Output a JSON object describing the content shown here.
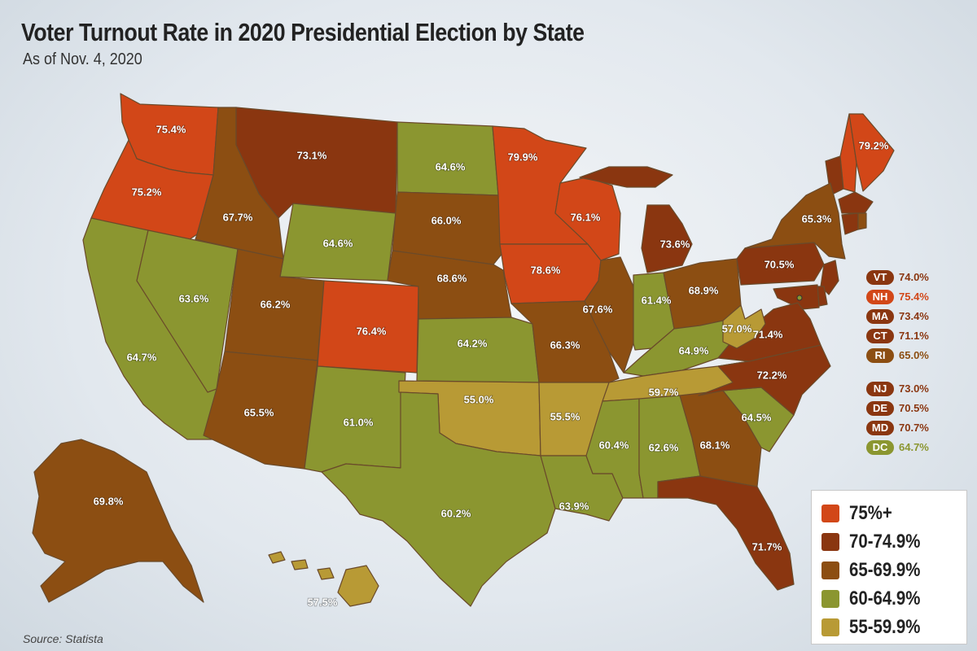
{
  "header": {
    "title": "Voter Turnout Rate in 2020 Presidential Election by State",
    "subtitle": "As of Nov. 4, 2020"
  },
  "source": "Source: Statista",
  "colors": {
    "c75": "#d24718",
    "c70": "#8a3610",
    "c65": "#8c4e12",
    "c60": "#8b9630",
    "c55": "#b89a35"
  },
  "states": [
    {
      "abbr": "WA",
      "value": "75.4%",
      "bin": "c75"
    },
    {
      "abbr": "OR",
      "value": "75.2%",
      "bin": "c75"
    },
    {
      "abbr": "CA",
      "value": "64.7%",
      "bin": "c60"
    },
    {
      "abbr": "NV",
      "value": "63.6%",
      "bin": "c60"
    },
    {
      "abbr": "ID",
      "value": "67.7%",
      "bin": "c65"
    },
    {
      "abbr": "MT",
      "value": "73.1%",
      "bin": "c70"
    },
    {
      "abbr": "WY",
      "value": "64.6%",
      "bin": "c60"
    },
    {
      "abbr": "UT",
      "value": "66.2%",
      "bin": "c65"
    },
    {
      "abbr": "AZ",
      "value": "65.5%",
      "bin": "c65"
    },
    {
      "abbr": "CO",
      "value": "76.4%",
      "bin": "c75"
    },
    {
      "abbr": "NM",
      "value": "61.0%",
      "bin": "c60"
    },
    {
      "abbr": "ND",
      "value": "64.6%",
      "bin": "c60"
    },
    {
      "abbr": "SD",
      "value": "66.0%",
      "bin": "c65"
    },
    {
      "abbr": "NE",
      "value": "68.6%",
      "bin": "c65"
    },
    {
      "abbr": "KS",
      "value": "64.2%",
      "bin": "c60"
    },
    {
      "abbr": "OK",
      "value": "55.0%",
      "bin": "c55"
    },
    {
      "abbr": "TX",
      "value": "60.2%",
      "bin": "c60"
    },
    {
      "abbr": "MN",
      "value": "79.9%",
      "bin": "c75"
    },
    {
      "abbr": "IA",
      "value": "78.6%",
      "bin": "c75"
    },
    {
      "abbr": "MO",
      "value": "66.3%",
      "bin": "c65"
    },
    {
      "abbr": "AR",
      "value": "55.5%",
      "bin": "c55"
    },
    {
      "abbr": "LA",
      "value": "63.9%",
      "bin": "c60"
    },
    {
      "abbr": "WI",
      "value": "76.1%",
      "bin": "c75"
    },
    {
      "abbr": "IL",
      "value": "67.6%",
      "bin": "c65"
    },
    {
      "abbr": "MI",
      "value": "73.6%",
      "bin": "c70"
    },
    {
      "abbr": "IN",
      "value": "61.4%",
      "bin": "c60"
    },
    {
      "abbr": "OH",
      "value": "68.9%",
      "bin": "c65"
    },
    {
      "abbr": "KY",
      "value": "64.9%",
      "bin": "c60"
    },
    {
      "abbr": "TN",
      "value": "59.7%",
      "bin": "c55"
    },
    {
      "abbr": "MS",
      "value": "60.4%",
      "bin": "c60"
    },
    {
      "abbr": "AL",
      "value": "62.6%",
      "bin": "c60"
    },
    {
      "abbr": "GA",
      "value": "68.1%",
      "bin": "c65"
    },
    {
      "abbr": "FL",
      "value": "71.7%",
      "bin": "c70"
    },
    {
      "abbr": "SC",
      "value": "64.5%",
      "bin": "c60"
    },
    {
      "abbr": "NC",
      "value": "72.2%",
      "bin": "c70"
    },
    {
      "abbr": "VA",
      "value": "71.4%",
      "bin": "c70"
    },
    {
      "abbr": "WV",
      "value": "57.0%",
      "bin": "c55"
    },
    {
      "abbr": "PA",
      "value": "70.5%",
      "bin": "c70"
    },
    {
      "abbr": "NY",
      "value": "65.3%",
      "bin": "c65"
    },
    {
      "abbr": "ME",
      "value": "79.2%",
      "bin": "c75"
    },
    {
      "abbr": "AK",
      "value": "69.8%",
      "bin": "c65"
    },
    {
      "abbr": "HI",
      "value": "57.5%",
      "bin": "c55"
    }
  ],
  "small_states": [
    {
      "abbr": "VT",
      "value": "74.0%",
      "bin": "c70"
    },
    {
      "abbr": "NH",
      "value": "75.4%",
      "bin": "c75"
    },
    {
      "abbr": "MA",
      "value": "73.4%",
      "bin": "c70"
    },
    {
      "abbr": "CT",
      "value": "71.1%",
      "bin": "c70"
    },
    {
      "abbr": "RI",
      "value": "65.0%",
      "bin": "c65"
    },
    {
      "abbr": "NJ",
      "value": "73.0%",
      "bin": "c70"
    },
    {
      "abbr": "DE",
      "value": "70.5%",
      "bin": "c70"
    },
    {
      "abbr": "MD",
      "value": "70.7%",
      "bin": "c70"
    },
    {
      "abbr": "DC",
      "value": "64.7%",
      "bin": "c60"
    }
  ],
  "legend": [
    {
      "label": "75%+",
      "bin": "c75"
    },
    {
      "label": "70-74.9%",
      "bin": "c70"
    },
    {
      "label": "65-69.9%",
      "bin": "c65"
    },
    {
      "label": "60-64.9%",
      "bin": "c60"
    },
    {
      "label": "55-59.9%",
      "bin": "c55"
    }
  ]
}
